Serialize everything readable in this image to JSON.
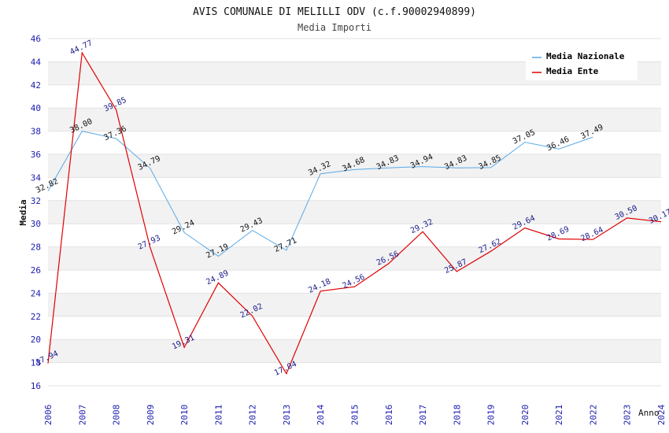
{
  "chart_data": {
    "type": "line",
    "title": "AVIS COMUNALE DI MELILLI ODV (c.f.90002940899)",
    "subtitle": "Media Importi",
    "xlabel": "Anno",
    "ylabel": "Media",
    "x": [
      "2006",
      "2007",
      "2008",
      "2009",
      "2010",
      "2011",
      "2012",
      "2013",
      "2014",
      "2015",
      "2016",
      "2017",
      "2018",
      "2019",
      "2020",
      "2021",
      "2022",
      "2023",
      "2024"
    ],
    "ylim": [
      16,
      46
    ],
    "yticks": [
      16,
      18,
      20,
      22,
      24,
      26,
      28,
      30,
      32,
      34,
      36,
      38,
      40,
      42,
      44,
      46
    ],
    "grid": "horizontal alternating bands",
    "legend_position": "top-right",
    "series": [
      {
        "name": "Media Nazionale",
        "color": "#5aa9e6",
        "values": [
          32.82,
          38.0,
          37.36,
          34.79,
          29.24,
          27.19,
          29.43,
          27.71,
          34.32,
          34.68,
          34.83,
          34.94,
          34.83,
          34.85,
          37.05,
          36.46,
          37.49,
          null,
          null
        ],
        "labels": [
          "32.82",
          "38.00",
          "37.36",
          "34.79",
          "29.24",
          "27.19",
          "29.43",
          "27.71",
          "34.32",
          "34.68",
          "34.83",
          "34.94",
          "34.83",
          "34.85",
          "37.05",
          "36.46",
          "37.49",
          null,
          null
        ]
      },
      {
        "name": "Media Ente",
        "color": "#e00000",
        "values": [
          17.94,
          44.77,
          39.85,
          27.93,
          19.31,
          24.89,
          22.02,
          17.04,
          24.18,
          24.56,
          26.56,
          29.32,
          25.87,
          27.62,
          29.64,
          28.69,
          28.64,
          30.5,
          30.17
        ],
        "labels": [
          "17.94",
          "44.77",
          "39.85",
          "27.93",
          "19.31",
          "24.89",
          "22.02",
          "17.04",
          "24.18",
          "24.56",
          "26.56",
          "29.32",
          "25.87",
          "27.62",
          "29.64",
          "28.69",
          "28.64",
          "30.50",
          "30.17"
        ]
      }
    ]
  }
}
